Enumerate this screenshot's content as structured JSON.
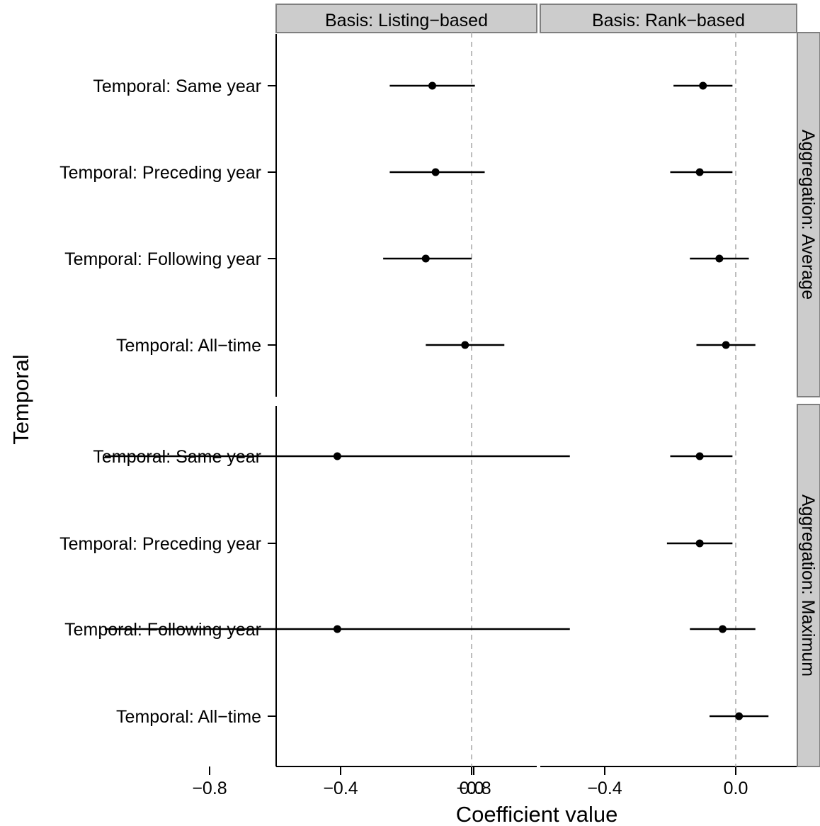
{
  "chart_data": {
    "type": "scatter",
    "subtype": "coefficient-plot with error bars, faceted",
    "title": "",
    "xlabel": "Coefficient value",
    "ylabel": "Temporal",
    "xlim": [
      -1.12,
      0.37
    ],
    "x_ticks": [
      -0.8,
      -0.4,
      0.0
    ],
    "x_tick_labels": [
      "−0.8",
      "−0.4",
      "0.0"
    ],
    "reference_line": {
      "x": 0,
      "style": "dashed",
      "color": "#bdbdbd"
    },
    "grid": false,
    "col_facet_labels": [
      "Basis: Listing−based",
      "Basis: Rank−based"
    ],
    "row_facet_labels": [
      "Aggregation: Average",
      "Aggregation: Maximum"
    ],
    "categories": [
      "Temporal: Same year",
      "Temporal: Preceding year",
      "Temporal: Following year",
      "Temporal: All−time"
    ],
    "panels": [
      {
        "basis": "Listing−based",
        "aggregation": "Average",
        "estimates": [
          -0.12,
          -0.11,
          -0.14,
          -0.02
        ],
        "lower": [
          -0.25,
          -0.25,
          -0.27,
          -0.14
        ],
        "upper": [
          0.01,
          0.04,
          0.0,
          0.1
        ]
      },
      {
        "basis": "Rank−based",
        "aggregation": "Average",
        "estimates": [
          -0.1,
          -0.11,
          -0.05,
          -0.03
        ],
        "lower": [
          -0.19,
          -0.2,
          -0.14,
          -0.12
        ],
        "upper": [
          -0.01,
          -0.01,
          0.04,
          0.06
        ]
      },
      {
        "basis": "Listing−based",
        "aggregation": "Maximum",
        "estimates": [
          -0.41,
          null,
          -0.41,
          null
        ],
        "lower": [
          -1.12,
          null,
          -1.12,
          null
        ],
        "upper": [
          0.3,
          null,
          0.3,
          null
        ]
      },
      {
        "basis": "Rank−based",
        "aggregation": "Maximum",
        "estimates": [
          -0.11,
          -0.11,
          -0.04,
          0.01
        ],
        "lower": [
          -0.2,
          -0.21,
          -0.14,
          -0.08
        ],
        "upper": [
          -0.01,
          -0.01,
          0.06,
          0.1
        ]
      }
    ],
    "colors": {
      "points": "#000000",
      "strip_fill": "#cccccc",
      "strip_border": "#7f7f7f",
      "reference_line": "#bdbdbd"
    }
  }
}
